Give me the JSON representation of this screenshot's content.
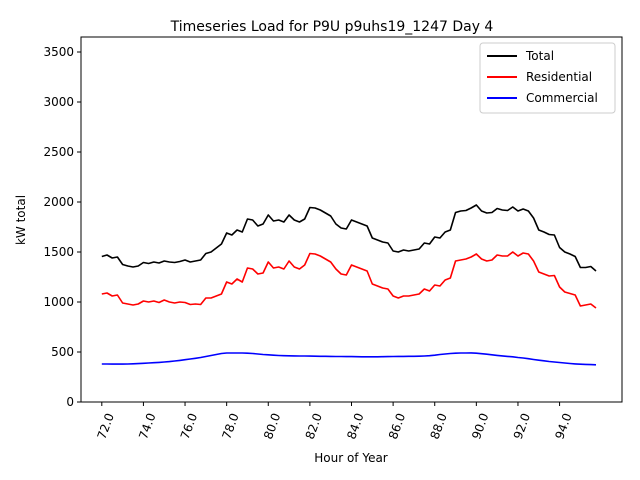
{
  "chart_data": {
    "type": "line",
    "title": "Timeseries Load for P9U p9uhs19_1247  Day 4",
    "xlabel": "Hour of Year",
    "ylabel": "kW total",
    "xlim": [
      71.0,
      97.0
    ],
    "ylim": [
      0,
      3650
    ],
    "xticks": [
      "72.0",
      "74.0",
      "76.0",
      "78.0",
      "80.0",
      "82.0",
      "84.0",
      "86.0",
      "88.0",
      "90.0",
      "92.0",
      "94.0"
    ],
    "yticks": [
      "0",
      "500",
      "1000",
      "1500",
      "2000",
      "2500",
      "3000",
      "3500"
    ],
    "legend_position": "top-right",
    "x": [
      72.0,
      72.25,
      72.5,
      72.75,
      73.0,
      73.25,
      73.5,
      73.75,
      74.0,
      74.25,
      74.5,
      74.75,
      75.0,
      75.25,
      75.5,
      75.75,
      76.0,
      76.25,
      76.5,
      76.75,
      77.0,
      77.25,
      77.5,
      77.75,
      78.0,
      78.25,
      78.5,
      78.75,
      79.0,
      79.25,
      79.5,
      79.75,
      80.0,
      80.25,
      80.5,
      80.75,
      81.0,
      81.25,
      81.5,
      81.75,
      82.0,
      82.25,
      82.5,
      82.75,
      83.0,
      83.25,
      83.5,
      83.75,
      84.0,
      84.25,
      84.5,
      84.75,
      85.0,
      85.25,
      85.5,
      85.75,
      86.0,
      86.25,
      86.5,
      86.75,
      87.0,
      87.25,
      87.5,
      87.75,
      88.0,
      88.25,
      88.5,
      88.75,
      89.0,
      89.25,
      89.5,
      89.75,
      90.0,
      90.25,
      90.5,
      90.75,
      91.0,
      91.25,
      91.5,
      91.75,
      92.0,
      92.25,
      92.5,
      92.75,
      93.0,
      93.25,
      93.5,
      93.75,
      94.0,
      94.25,
      94.5,
      94.75,
      95.0,
      95.25,
      95.5,
      95.75
    ],
    "series": [
      {
        "name": "Total",
        "color": "#000000",
        "values": [
          1455,
          1470,
          1440,
          1450,
          1375,
          1360,
          1350,
          1360,
          1395,
          1385,
          1400,
          1390,
          1410,
          1400,
          1395,
          1405,
          1420,
          1400,
          1410,
          1420,
          1485,
          1500,
          1540,
          1580,
          1690,
          1670,
          1720,
          1700,
          1830,
          1820,
          1760,
          1780,
          1870,
          1810,
          1820,
          1800,
          1870,
          1820,
          1800,
          1830,
          1945,
          1940,
          1920,
          1890,
          1860,
          1780,
          1740,
          1730,
          1820,
          1800,
          1780,
          1760,
          1640,
          1620,
          1600,
          1590,
          1510,
          1500,
          1520,
          1510,
          1520,
          1530,
          1590,
          1580,
          1650,
          1640,
          1700,
          1720,
          1895,
          1910,
          1915,
          1940,
          1970,
          1910,
          1890,
          1895,
          1935,
          1920,
          1915,
          1950,
          1910,
          1930,
          1910,
          1840,
          1720,
          1700,
          1675,
          1670,
          1545,
          1500,
          1480,
          1455,
          1345,
          1345,
          1355,
          1310
        ]
      },
      {
        "name": "Residential",
        "color": "#ff0000",
        "values": [
          1080,
          1090,
          1060,
          1070,
          990,
          980,
          970,
          980,
          1010,
          1000,
          1010,
          995,
          1020,
          1000,
          990,
          1000,
          995,
          975,
          980,
          975,
          1040,
          1040,
          1060,
          1080,
          1200,
          1180,
          1230,
          1200,
          1340,
          1330,
          1280,
          1290,
          1400,
          1340,
          1350,
          1330,
          1410,
          1350,
          1330,
          1370,
          1485,
          1480,
          1460,
          1430,
          1400,
          1330,
          1280,
          1270,
          1370,
          1350,
          1330,
          1310,
          1180,
          1160,
          1140,
          1130,
          1060,
          1040,
          1060,
          1060,
          1070,
          1080,
          1130,
          1110,
          1170,
          1160,
          1220,
          1240,
          1410,
          1420,
          1430,
          1450,
          1480,
          1430,
          1410,
          1420,
          1470,
          1460,
          1460,
          1500,
          1460,
          1490,
          1480,
          1410,
          1300,
          1280,
          1260,
          1265,
          1150,
          1100,
          1085,
          1070,
          960,
          970,
          980,
          940
        ]
      },
      {
        "name": "Commercial",
        "color": "#0000ff",
        "values": [
          380,
          380,
          379,
          380,
          379,
          380,
          382,
          384,
          387,
          390,
          393,
          396,
          400,
          404,
          410,
          416,
          423,
          430,
          437,
          445,
          455,
          465,
          475,
          485,
          490,
          490,
          490,
          490,
          488,
          485,
          480,
          475,
          472,
          468,
          465,
          463,
          462,
          461,
          460,
          460,
          459,
          458,
          457,
          457,
          456,
          455,
          455,
          454,
          454,
          453,
          452,
          452,
          452,
          452,
          453,
          454,
          455,
          456,
          456,
          457,
          457,
          458,
          460,
          463,
          468,
          475,
          480,
          485,
          488,
          490,
          490,
          491,
          488,
          483,
          478,
          472,
          466,
          461,
          456,
          452,
          445,
          440,
          433,
          425,
          418,
          412,
          405,
          400,
          395,
          390,
          385,
          381,
          378,
          376,
          374,
          372
        ]
      }
    ]
  }
}
